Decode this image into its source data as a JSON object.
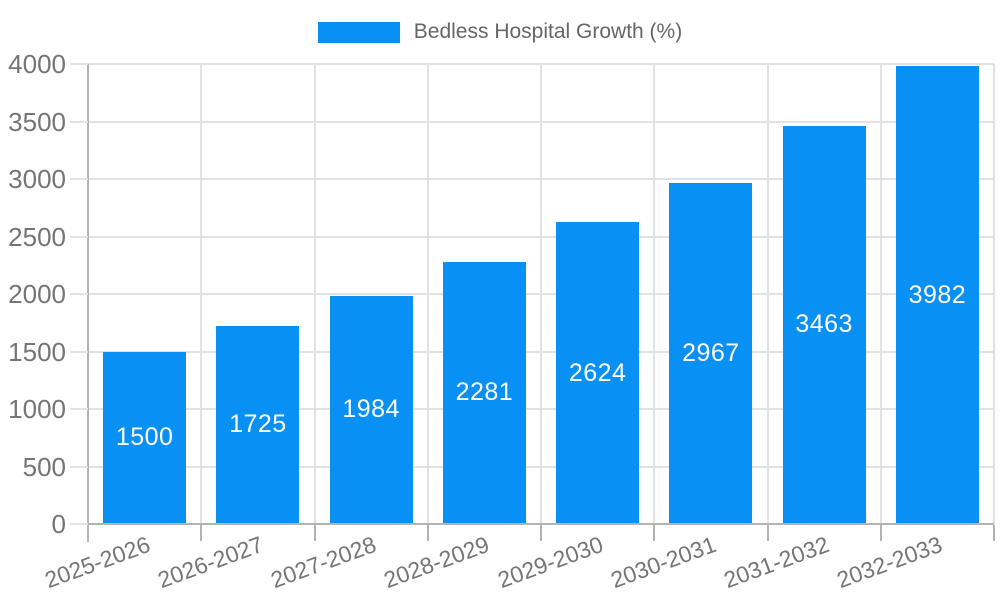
{
  "legend": {
    "label": "Bedless Hospital Growth (%)"
  },
  "chart_data": {
    "type": "bar",
    "title": "Bedless Hospital Growth (%)",
    "categories": [
      "2025-2026",
      "2026-2027",
      "2027-2028",
      "2028-2029",
      "2029-2030",
      "2030-2031",
      "2031-2032",
      "2032-2033"
    ],
    "values": [
      1500,
      1725,
      1984,
      2281,
      2624,
      2967,
      3463,
      3982
    ],
    "value_labels": [
      "1500",
      "1725",
      "1984",
      "2281",
      "2624",
      "2967",
      "3463",
      "3982"
    ],
    "xlabel": "",
    "ylabel": "",
    "ylim": [
      0,
      4000
    ],
    "yticks": [
      0,
      500,
      1000,
      1500,
      2000,
      2500,
      3000,
      3500,
      4000
    ],
    "grid": true,
    "legend_position": "top-center",
    "x_label_rotation_deg": -20,
    "colors": {
      "bar": "#0990F5",
      "value_label": "#FFFFFF",
      "tick_label": "#757575",
      "title": "#666666",
      "axis": "#B3B3B3",
      "grid": "#E2E2E2"
    }
  }
}
